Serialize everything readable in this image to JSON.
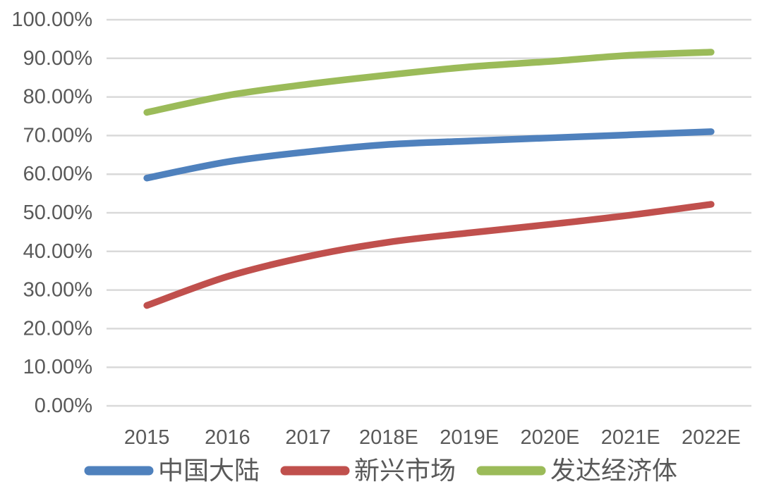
{
  "chart_data": {
    "type": "line",
    "title": "",
    "xlabel": "",
    "ylabel": "",
    "categories": [
      "2015",
      "2016",
      "2017",
      "2018E",
      "2019E",
      "2020E",
      "2021E",
      "2022E"
    ],
    "series": [
      {
        "name": "中国大陆",
        "color": "#4F81BD",
        "values": [
          59.0,
          63.2,
          65.8,
          67.7,
          68.6,
          69.4,
          70.2,
          71.0
        ]
      },
      {
        "name": "新兴市场",
        "color": "#C0504D",
        "values": [
          26.0,
          33.5,
          38.7,
          42.4,
          44.8,
          47.0,
          49.4,
          52.2
        ]
      },
      {
        "name": "发达经济体",
        "color": "#9BBB59",
        "values": [
          76.0,
          80.4,
          83.3,
          85.7,
          87.8,
          89.2,
          90.8,
          91.6
        ]
      }
    ],
    "ylim": [
      0,
      100
    ],
    "y_tick_values": [
      0,
      10,
      20,
      30,
      40,
      50,
      60,
      70,
      80,
      90,
      100
    ],
    "y_tick_labels": [
      "0.00%",
      "10.00%",
      "20.00%",
      "30.00%",
      "40.00%",
      "50.00%",
      "60.00%",
      "70.00%",
      "80.00%",
      "90.00%",
      "100.00%"
    ],
    "grid": true,
    "line_style": "smooth",
    "legend_position": "bottom",
    "colors": {
      "axis_text": "#595959",
      "gridline": "#D9D9D9",
      "background": "#FFFFFF"
    }
  }
}
